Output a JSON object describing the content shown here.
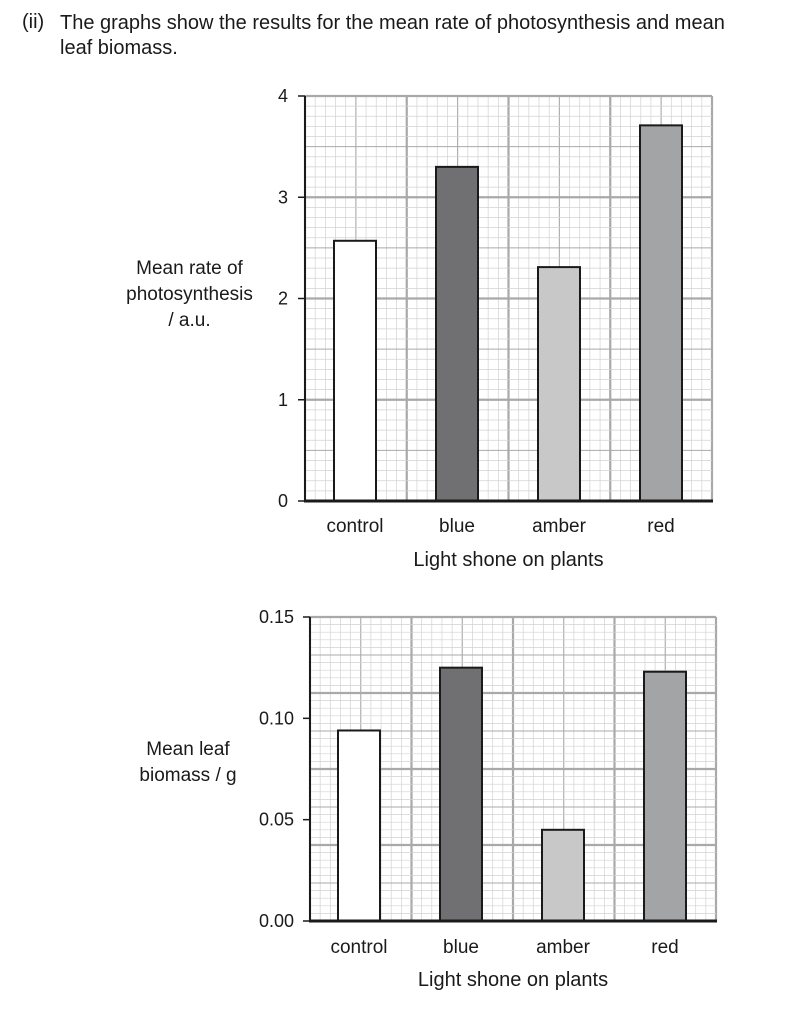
{
  "question": {
    "number": "(ii)",
    "line1": "The graphs show the results for the mean rate of photosynthesis and mean",
    "line2": "leaf biomass."
  },
  "colors": {
    "control": "#ffffff",
    "blue": "#707072",
    "amber": "#c8c8c9",
    "red": "#a3a4a6",
    "grid_major": "#a9a9a9",
    "grid_minor": "#d2d2d2",
    "axis": "#1a1a1a"
  },
  "chart_data": [
    {
      "type": "bar",
      "categories": [
        "control",
        "blue",
        "amber",
        "red"
      ],
      "values": [
        2.57,
        3.3,
        2.31,
        3.71
      ],
      "ylabel_lines": [
        "Mean rate of",
        "photosynthesis",
        "/ a.u."
      ],
      "xlabel": "Light shone on plants",
      "ylim": [
        0,
        4
      ],
      "yticks": [
        "0",
        "1",
        "2",
        "3",
        "4"
      ],
      "grid": true
    },
    {
      "type": "bar",
      "categories": [
        "control",
        "blue",
        "amber",
        "red"
      ],
      "values": [
        0.094,
        0.125,
        0.045,
        0.123
      ],
      "ylabel_lines": [
        "Mean leaf",
        "biomass / g"
      ],
      "xlabel": "Light shone on plants",
      "ylim": [
        0,
        0.15
      ],
      "yticks": [
        "0.00",
        "0.05",
        "0.10",
        "0.15"
      ],
      "grid": true
    }
  ]
}
